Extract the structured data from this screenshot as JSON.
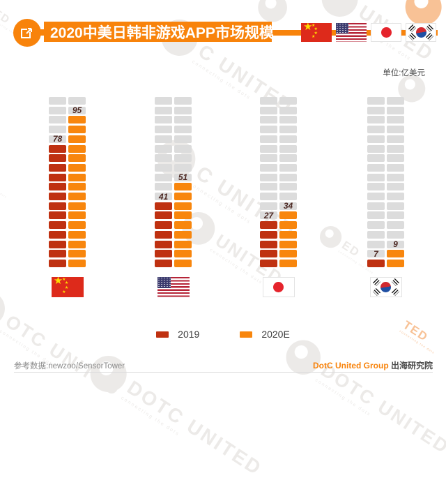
{
  "header": {
    "title": "2020中美日韩非游戏APP市场规模",
    "icon": "external-link-icon",
    "flags": [
      "china",
      "usa",
      "japan",
      "korea"
    ]
  },
  "unit_label": "单位:亿美元",
  "chart_data": {
    "type": "bar",
    "subtype": "brick-stack-columns",
    "title": "2020中美日韩非游戏APP市场规模",
    "unit": "亿美元",
    "categories": [
      "china",
      "usa",
      "japan",
      "korea"
    ],
    "series": [
      {
        "name": "2019",
        "color": "#bf3111",
        "values": [
          78,
          41,
          27,
          7
        ]
      },
      {
        "name": "2020E",
        "color": "#f8860d",
        "values": [
          95,
          51,
          34,
          9
        ]
      }
    ],
    "rows": 18,
    "value_per_brick": 6,
    "empty_brick_color": "#dcdcdc",
    "legend_position": "bottom"
  },
  "legend": [
    {
      "label": "2019",
      "color": "#bf3111"
    },
    {
      "label": "2020E",
      "color": "#f8860d"
    }
  ],
  "footer": {
    "source": "参考数据:newzoo/SensorTower",
    "brand": "DotC United Group",
    "brand_suffix": " 出海研究院"
  },
  "watermark": {
    "text": "DOTC UNITED",
    "subtext": "connecting the dots"
  },
  "colors": {
    "accent": "#f8830b",
    "empty_brick": "#dcdcdc",
    "series_2019": "#bf3111",
    "series_2020E": "#f8860d"
  }
}
